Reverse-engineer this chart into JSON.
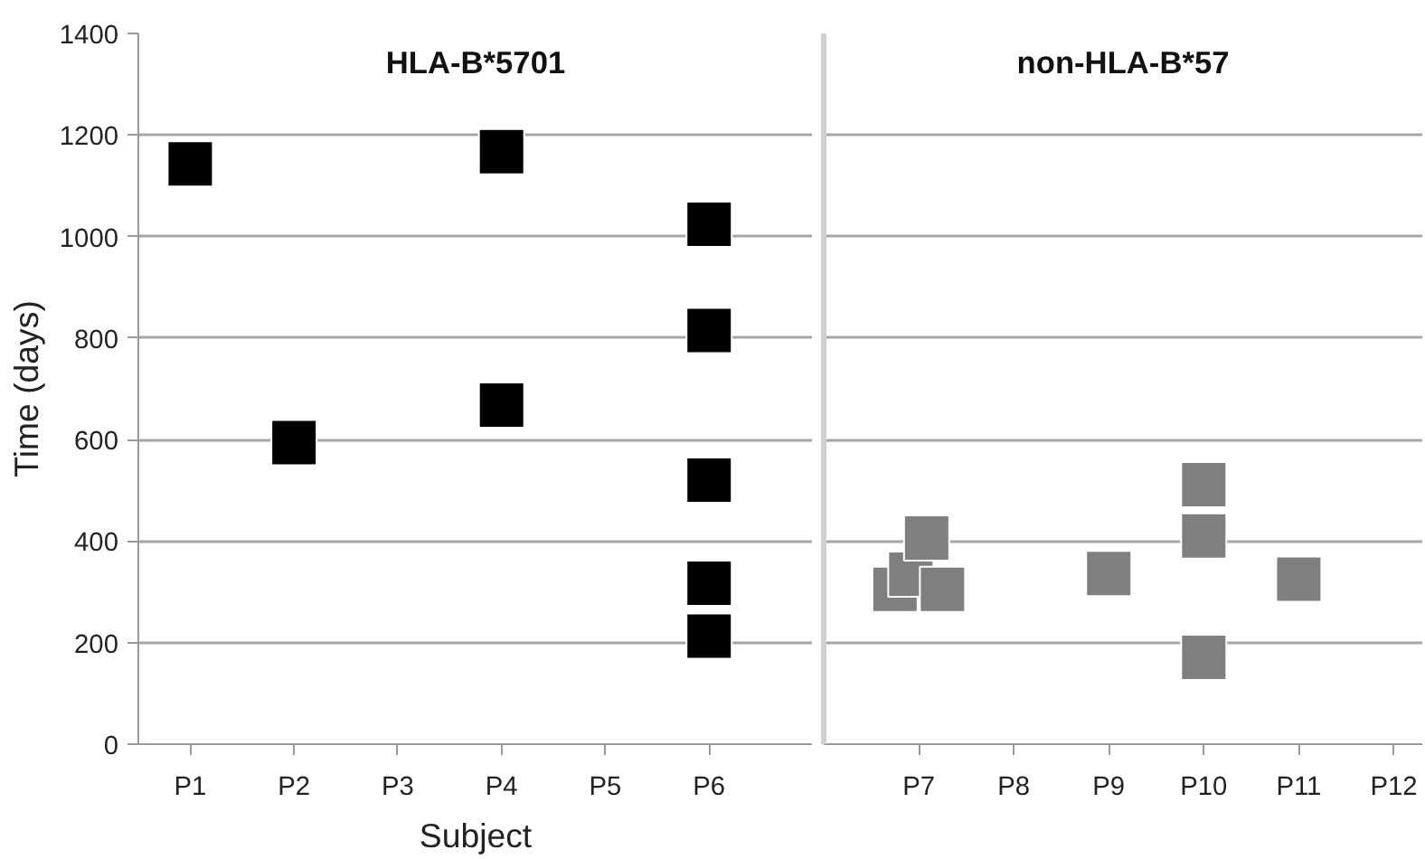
{
  "chart_data": [
    {
      "type": "scatter",
      "title": "HLA-B*5701",
      "xlabel": "Subject",
      "ylabel": "Time (days)",
      "categories": [
        "P1",
        "P2",
        "P3",
        "P4",
        "P5",
        "P6"
      ],
      "ylim": [
        0,
        1400
      ],
      "yticks": [
        0,
        200,
        400,
        600,
        800,
        1000,
        1200,
        1400
      ],
      "grid": "y",
      "marker": "square",
      "series": [
        {
          "color": "#000000",
          "x": [
            "P1",
            "P2",
            "P4",
            "P4",
            "P6",
            "P6",
            "P6",
            "P6",
            "P6"
          ],
          "values": [
            1143,
            594,
            1167,
            668,
            1024,
            815,
            520,
            317,
            213
          ]
        }
      ]
    },
    {
      "type": "scatter",
      "title": "non-HLA-B*57",
      "categories": [
        "P7",
        "P8",
        "P9",
        "P10",
        "P11",
        "P12"
      ],
      "ylim": [
        0,
        1400
      ],
      "yticks": [
        0,
        200,
        400,
        600,
        800,
        1000,
        1200,
        1400
      ],
      "tick_labels": "x",
      "grid": "y",
      "marker": "square",
      "series": [
        {
          "color": "#7f7f7f",
          "x": [
            "P7",
            "P7",
            "P7",
            "P7",
            "P9",
            "P10",
            "P10",
            "P10",
            "P11"
          ],
          "values": [
            305,
            335,
            406,
            305,
            336,
            511,
            410,
            171,
            325
          ]
        }
      ]
    }
  ]
}
